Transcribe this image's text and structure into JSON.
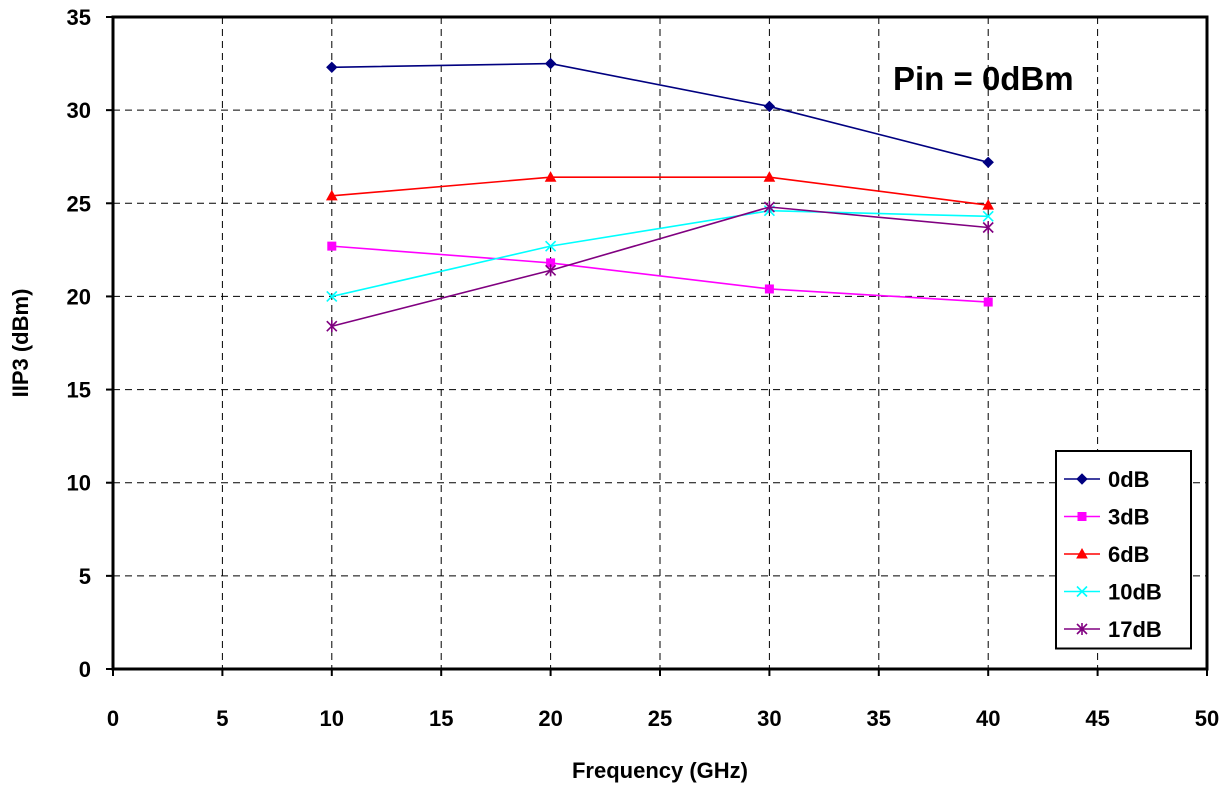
{
  "chart_data": {
    "type": "line",
    "title": "",
    "xlabel": "Frequency (GHz)",
    "ylabel": "IIP3 (dBm)",
    "annotation": "Pin = 0dBm",
    "xlim": [
      0,
      50
    ],
    "ylim": [
      0,
      35
    ],
    "x_ticks": [
      "0",
      "5",
      "10",
      "15",
      "20",
      "25",
      "30",
      "35",
      "40",
      "45",
      "50"
    ],
    "y_ticks": [
      "0",
      "5",
      "10",
      "15",
      "20",
      "25",
      "30",
      "35"
    ],
    "grid": true,
    "legend_position": "bottom-right",
    "x": [
      10,
      20,
      30,
      40
    ],
    "series": [
      {
        "name": "0dB",
        "values": [
          32.3,
          32.5,
          30.2,
          27.2
        ],
        "color": "#000080",
        "marker": "diamond"
      },
      {
        "name": "3dB",
        "values": [
          22.7,
          21.8,
          20.4,
          19.7
        ],
        "color": "#FF00FF",
        "marker": "square"
      },
      {
        "name": "6dB",
        "values": [
          25.4,
          26.4,
          26.4,
          24.9
        ],
        "color": "#FF0000",
        "marker": "triangle"
      },
      {
        "name": "10dB",
        "values": [
          20.0,
          22.7,
          24.6,
          24.3
        ],
        "color": "#00FFFF",
        "marker": "x"
      },
      {
        "name": "17dB",
        "values": [
          18.4,
          21.4,
          24.8,
          23.7
        ],
        "color": "#800080",
        "marker": "star"
      }
    ]
  }
}
